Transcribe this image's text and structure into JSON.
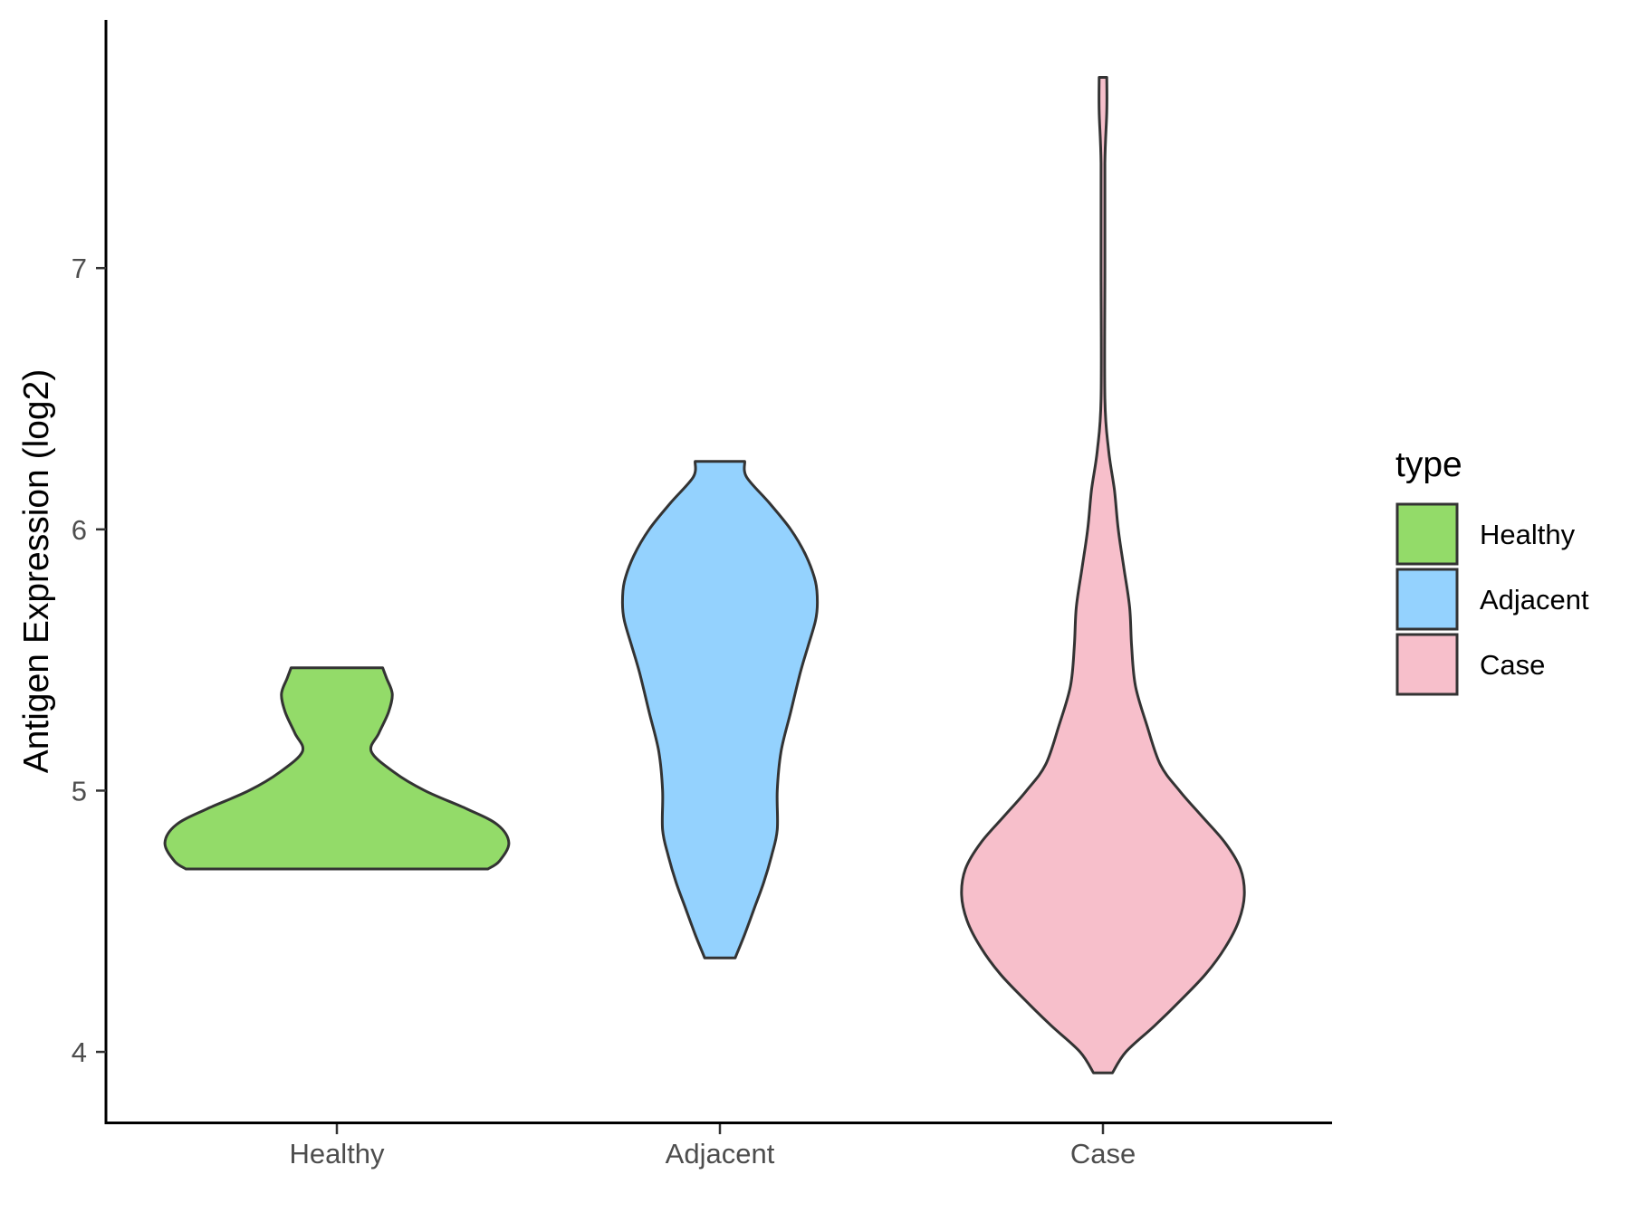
{
  "chart_data": {
    "type": "violin",
    "ylabel": "Antigen Expression (log2)",
    "xlabel": "",
    "ylim": [
      3.73,
      7.95
    ],
    "yticks": [
      4,
      5,
      6,
      7
    ],
    "grid": false,
    "legend": {
      "title": "type",
      "placement": "right",
      "entries": [
        "Healthy",
        "Adjacent",
        "Case"
      ]
    },
    "categories": [
      "Healthy",
      "Adjacent",
      "Case"
    ],
    "colors": {
      "Healthy": "#93DB69",
      "Adjacent": "#94D2FE",
      "Case": "#F7BFCB"
    },
    "series": [
      {
        "name": "Healthy",
        "range": [
          4.7,
          5.47
        ],
        "profile": [
          [
            4.7,
            0.79
          ],
          [
            4.73,
            0.85
          ],
          [
            4.8,
            0.9
          ],
          [
            4.87,
            0.84
          ],
          [
            4.93,
            0.68
          ],
          [
            5.0,
            0.46
          ],
          [
            5.07,
            0.3
          ],
          [
            5.15,
            0.18
          ],
          [
            5.22,
            0.22
          ],
          [
            5.3,
            0.27
          ],
          [
            5.37,
            0.29
          ],
          [
            5.43,
            0.26
          ],
          [
            5.47,
            0.24
          ]
        ]
      },
      {
        "name": "Adjacent",
        "range": [
          4.36,
          6.26
        ],
        "profile": [
          [
            4.36,
            0.08
          ],
          [
            4.45,
            0.13
          ],
          [
            4.55,
            0.18
          ],
          [
            4.65,
            0.23
          ],
          [
            4.75,
            0.27
          ],
          [
            4.85,
            0.3
          ],
          [
            5.0,
            0.3
          ],
          [
            5.15,
            0.32
          ],
          [
            5.3,
            0.37
          ],
          [
            5.45,
            0.42
          ],
          [
            5.55,
            0.46
          ],
          [
            5.65,
            0.5
          ],
          [
            5.72,
            0.51
          ],
          [
            5.8,
            0.5
          ],
          [
            5.9,
            0.45
          ],
          [
            6.0,
            0.37
          ],
          [
            6.1,
            0.26
          ],
          [
            6.2,
            0.14
          ],
          [
            6.26,
            0.13
          ]
        ]
      },
      {
        "name": "Case",
        "range": [
          3.92,
          7.73
        ],
        "profile": [
          [
            3.92,
            0.05
          ],
          [
            4.0,
            0.12
          ],
          [
            4.1,
            0.27
          ],
          [
            4.2,
            0.41
          ],
          [
            4.3,
            0.54
          ],
          [
            4.4,
            0.64
          ],
          [
            4.5,
            0.71
          ],
          [
            4.6,
            0.74
          ],
          [
            4.7,
            0.72
          ],
          [
            4.8,
            0.64
          ],
          [
            4.9,
            0.52
          ],
          [
            5.0,
            0.4
          ],
          [
            5.1,
            0.3
          ],
          [
            5.25,
            0.23
          ],
          [
            5.4,
            0.17
          ],
          [
            5.55,
            0.15
          ],
          [
            5.7,
            0.14
          ],
          [
            5.85,
            0.11
          ],
          [
            6.0,
            0.08
          ],
          [
            6.15,
            0.06
          ],
          [
            6.3,
            0.03
          ],
          [
            6.5,
            0.01
          ],
          [
            7.0,
            0.01
          ],
          [
            7.4,
            0.01
          ],
          [
            7.6,
            0.02
          ],
          [
            7.73,
            0.02
          ]
        ]
      }
    ]
  }
}
